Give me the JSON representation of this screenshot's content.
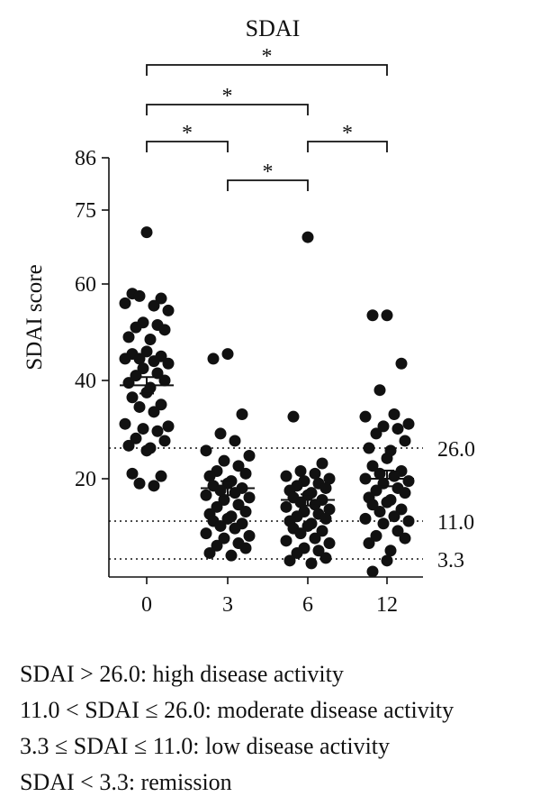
{
  "chart_data": {
    "type": "scatter",
    "title": "SDAI",
    "xlabel": "",
    "ylabel": "SDAI score",
    "categories": [
      "0",
      "3",
      "6",
      "12"
    ],
    "y_ticks": [
      {
        "label": "20",
        "value": 20
      },
      {
        "label": "40",
        "value": 40
      },
      {
        "label": "60",
        "value": 60
      },
      {
        "label": "75",
        "value": 75
      },
      {
        "label": "86",
        "value": 86
      }
    ],
    "ylim": [
      0,
      86
    ],
    "grid": false,
    "series": [
      {
        "group": "0",
        "mean": 39,
        "sem": 1.7,
        "values": [
          70.5,
          58,
          57,
          57.5,
          55.5,
          56,
          54.5,
          52,
          51.5,
          51,
          50.5,
          49,
          48.5,
          46,
          45.5,
          45,
          44.5,
          44,
          44.5,
          43.5,
          42.5,
          41.5,
          41,
          40,
          39.5,
          38.5,
          37.5,
          36.5,
          35,
          34.5,
          33.5,
          31,
          30.5,
          30,
          29.5,
          28,
          27.5,
          26.5,
          26,
          25.5,
          21,
          20.5,
          19,
          18.5
        ]
      },
      {
        "group": "3",
        "mean": 18,
        "sem": 1.5,
        "values": [
          45.5,
          44.5,
          33,
          29,
          27.5,
          25.5,
          24.5,
          23.5,
          22.5,
          21.5,
          21,
          20.5,
          19.5,
          19,
          18.5,
          18,
          17.5,
          17,
          16.5,
          16,
          15.5,
          14.5,
          14,
          13,
          12.5,
          12,
          11.5,
          11,
          10.5,
          10,
          9.5,
          8.5,
          8,
          7.5,
          6.5,
          6,
          5.5,
          4.5,
          4
        ]
      },
      {
        "group": "6",
        "mean": 15.5,
        "sem": 1.2,
        "values": [
          69.5,
          32.5,
          23,
          21.5,
          21,
          20.5,
          20,
          19.5,
          19,
          18.5,
          18,
          17.5,
          17,
          16.5,
          16,
          15.5,
          15,
          14.5,
          14,
          13.5,
          13,
          12.5,
          12,
          11.5,
          11,
          10.5,
          10,
          9.5,
          9,
          8.5,
          7.5,
          7,
          6.5,
          5.5,
          5,
          4.5,
          3.5,
          3,
          2.5
        ]
      },
      {
        "group": "12",
        "mean": 20,
        "sem": 1.6,
        "values": [
          53.5,
          53.5,
          43.5,
          38,
          33,
          32.5,
          31,
          30.5,
          30,
          29,
          27.5,
          26,
          25.5,
          24,
          22.5,
          21.5,
          21,
          20.5,
          20,
          19.5,
          19,
          18,
          17.5,
          17,
          16,
          15.5,
          15,
          14.5,
          13.5,
          13,
          12,
          11.5,
          11,
          10.5,
          9,
          8,
          7.5,
          6.5,
          5,
          3,
          1
        ]
      }
    ],
    "thresholds": [
      {
        "value": 26.0,
        "label": "26.0"
      },
      {
        "value": 11.0,
        "label": "11.0"
      },
      {
        "value": 3.3,
        "label": "3.3"
      }
    ],
    "significance": [
      {
        "from": "0",
        "to": "12",
        "label": "*"
      },
      {
        "from": "0",
        "to": "6",
        "label": "*"
      },
      {
        "from": "0",
        "to": "3",
        "label": "*"
      },
      {
        "from": "6",
        "to": "12",
        "label": "*"
      },
      {
        "from": "3",
        "to": "6",
        "label": "*"
      }
    ]
  },
  "legend": {
    "lines": [
      "SDAI > 26.0: high disease activity",
      "11.0 < SDAI ≤ 26.0: moderate disease activity",
      "3.3 ≤ SDAI ≤ 11.0: low disease activity",
      "SDAI < 3.3: remission"
    ]
  }
}
